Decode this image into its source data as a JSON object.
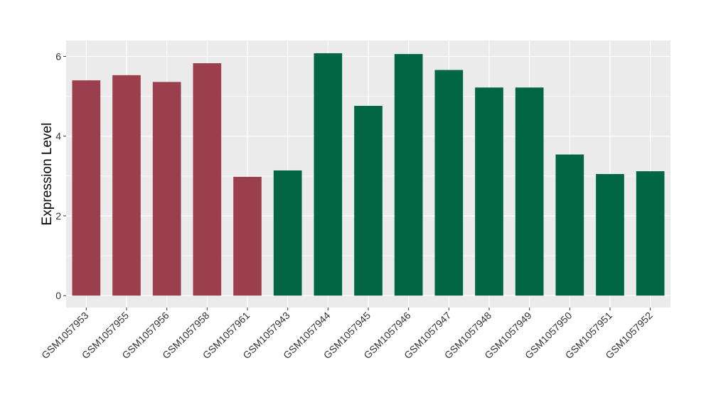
{
  "chart_data": {
    "type": "bar",
    "title": "",
    "xlabel": "",
    "ylabel": "Expression Level",
    "ylim": [
      -0.3,
      6.4
    ],
    "yticks": [
      0,
      2,
      4,
      6
    ],
    "grid": true,
    "categories": [
      "GSM1057953",
      "GSM1057955",
      "GSM1057956",
      "GSM1057958",
      "GSM1057961",
      "GSM1057943",
      "GSM1057944",
      "GSM1057945",
      "GSM1057946",
      "GSM1057947",
      "GSM1057948",
      "GSM1057949",
      "GSM1057950",
      "GSM1057951",
      "GSM1057952"
    ],
    "values": [
      5.4,
      5.53,
      5.36,
      5.83,
      2.98,
      3.14,
      6.08,
      4.76,
      6.06,
      5.66,
      5.22,
      5.22,
      3.54,
      3.05,
      3.12
    ],
    "bar_colors": [
      "#9b3f4f",
      "#9b3f4f",
      "#9b3f4f",
      "#9b3f4f",
      "#9b3f4f",
      "#006644",
      "#006644",
      "#006644",
      "#006644",
      "#006644",
      "#006644",
      "#006644",
      "#006644",
      "#006644",
      "#006644"
    ],
    "panel_background": "#ebebeb",
    "gridline_color": "#ffffff"
  }
}
